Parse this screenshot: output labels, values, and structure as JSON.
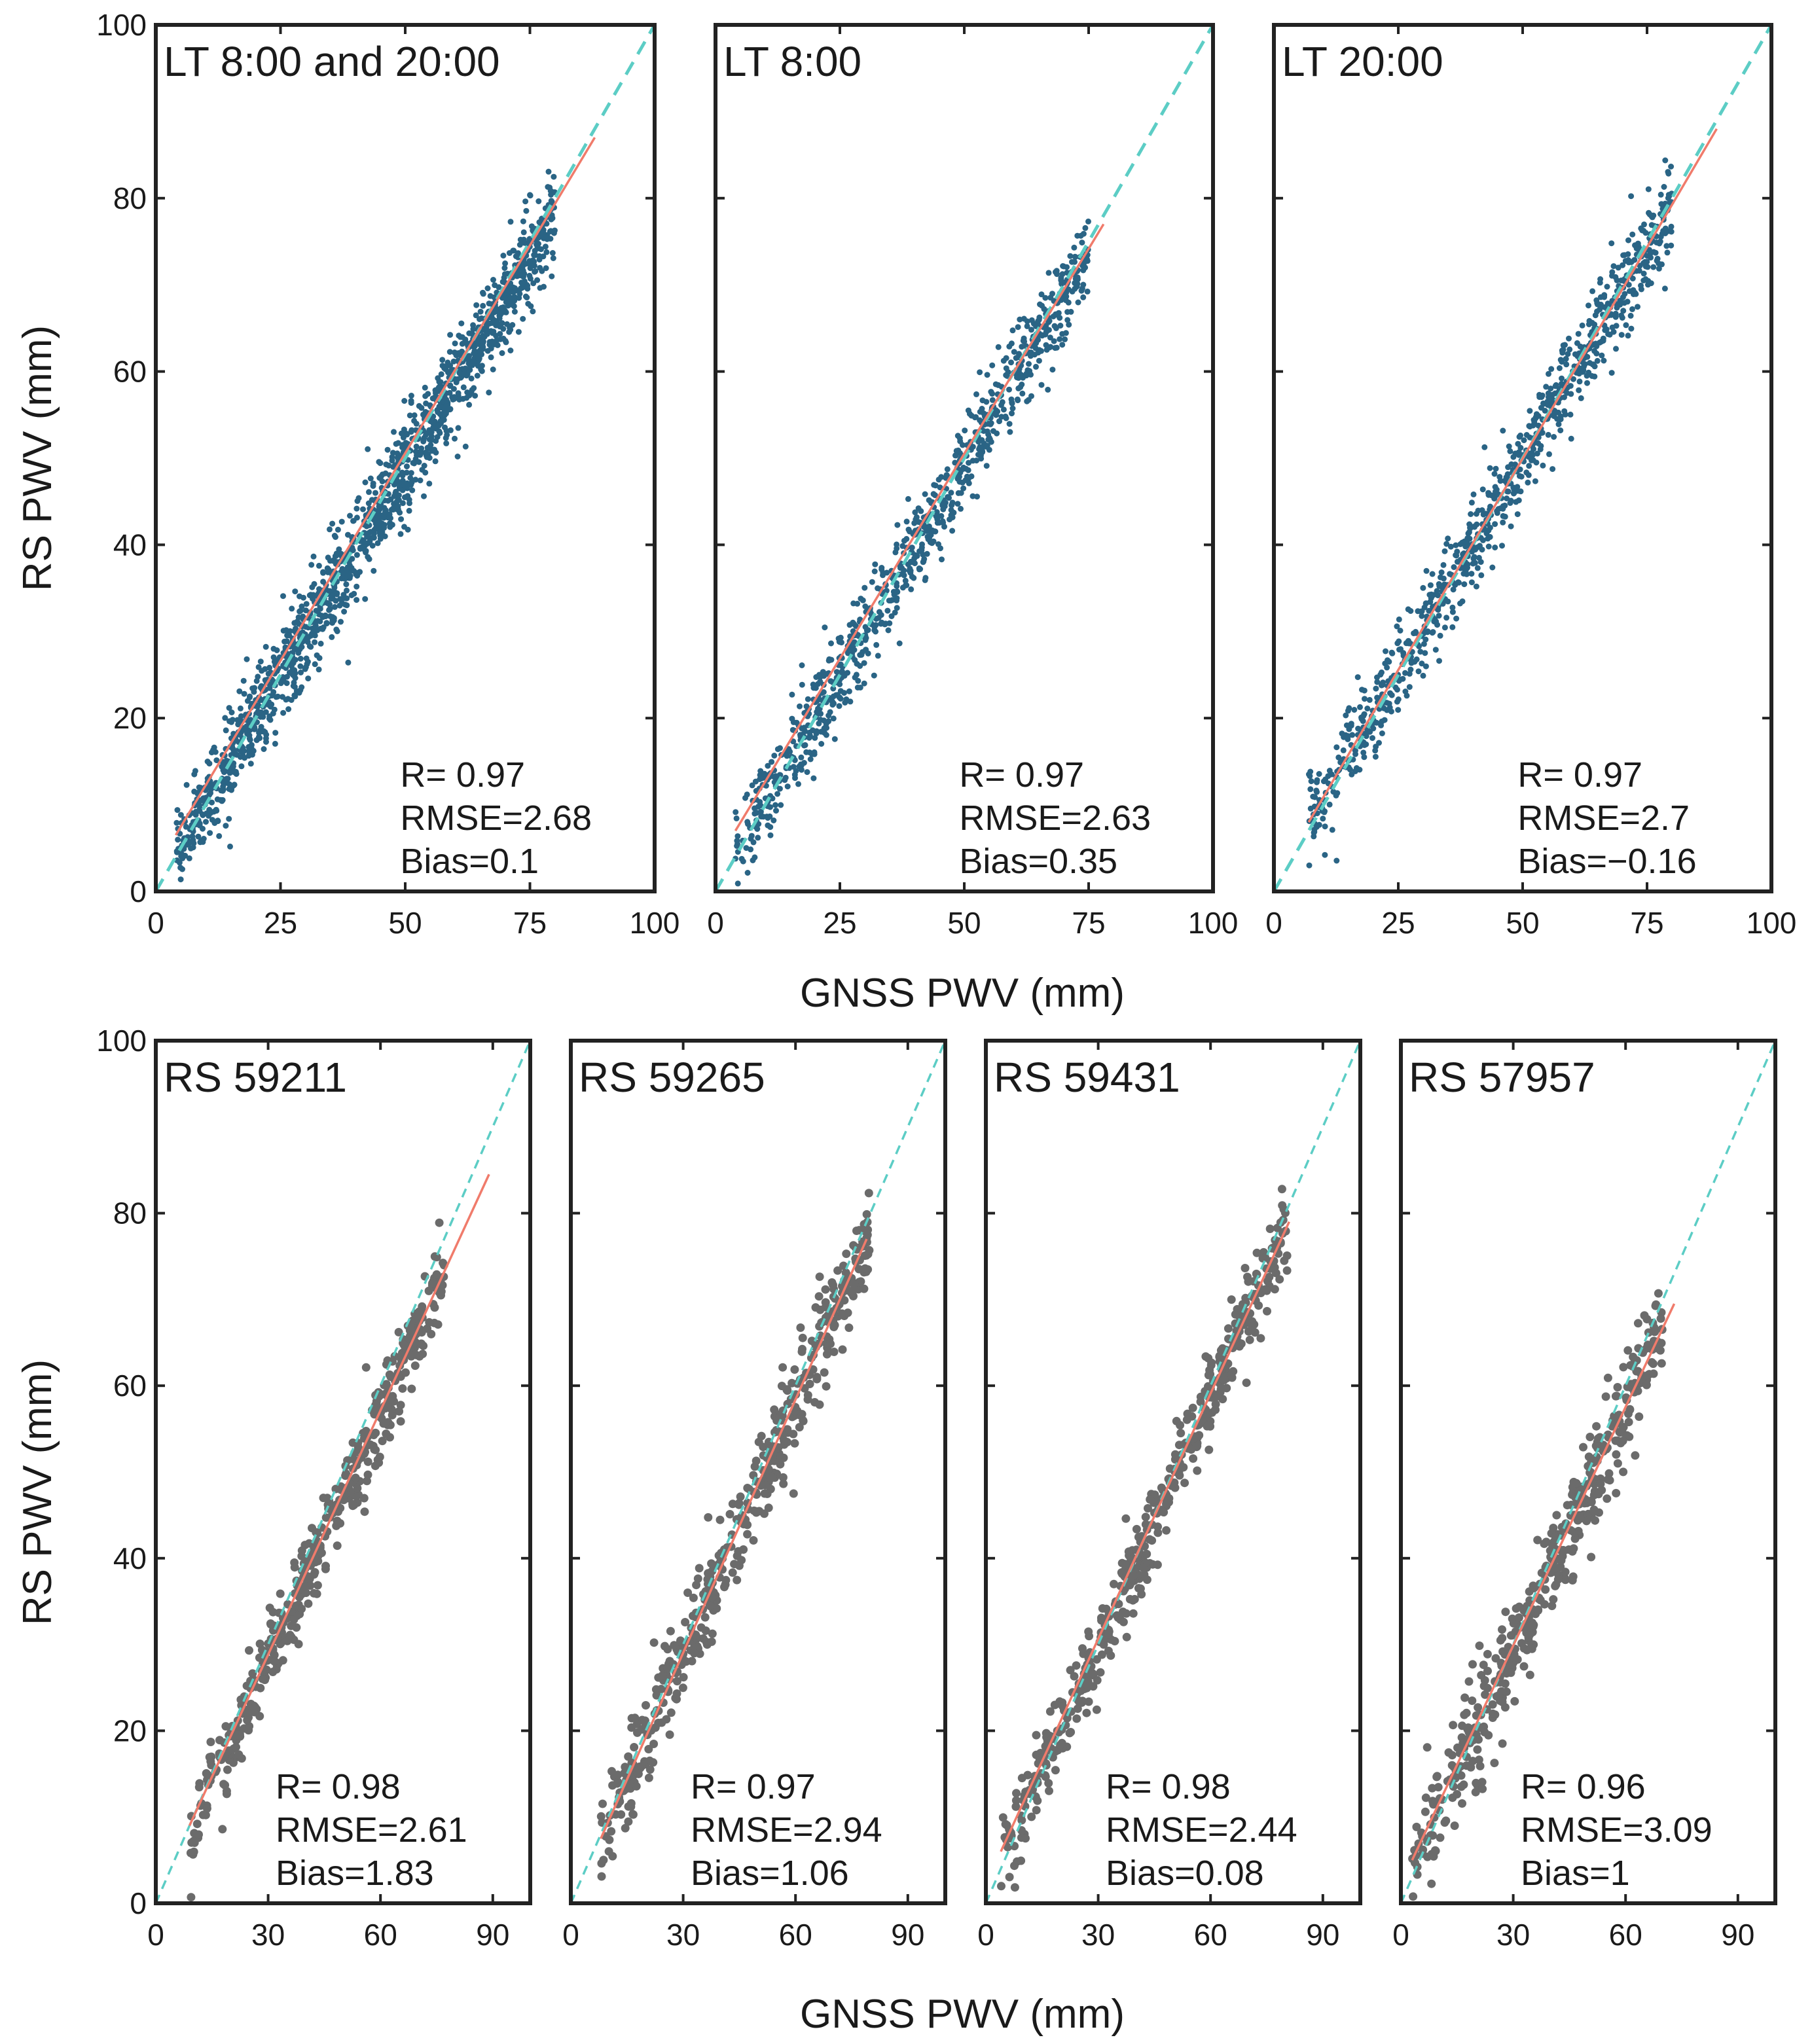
{
  "figure": {
    "x_label": "GNSS PWV (mm)",
    "y_label": "RS PWV (mm)",
    "colors": {
      "top_points": "#2a6485",
      "bottom_points": "#6b6b6b",
      "fit_line": "#f07b6b",
      "identity_line": "#5ccdc5",
      "axes": "#222222"
    }
  },
  "chart_data": [
    {
      "type": "scatter",
      "title": "LT 8:00 and 20:00",
      "xlim": [
        0,
        100
      ],
      "ylim": [
        0,
        100
      ],
      "xticks": [
        0,
        25,
        50,
        75,
        100
      ],
      "yticks": [
        0,
        20,
        40,
        60,
        80,
        100
      ],
      "stats": [
        "R= 0.97",
        "RMSE=2.68",
        "Bias=0.1"
      ],
      "fit_line": [
        [
          4,
          6.5
        ],
        [
          88,
          87
        ]
      ],
      "identity_line": [
        [
          0,
          0
        ],
        [
          100,
          100
        ]
      ],
      "scatter_summary": {
        "x_range": [
          4,
          80
        ],
        "slope": 0.97,
        "intercept": 0.6,
        "spread": 2.7,
        "n_shown": 1500
      }
    },
    {
      "type": "scatter",
      "title": "LT 8:00",
      "xlim": [
        0,
        100
      ],
      "ylim": [
        0,
        100
      ],
      "xticks": [
        0,
        25,
        50,
        75,
        100
      ],
      "yticks": [
        0,
        20,
        40,
        60,
        80,
        100
      ],
      "stats": [
        "R= 0.97",
        "RMSE=2.63",
        "Bias=0.35"
      ],
      "fit_line": [
        [
          4,
          7
        ],
        [
          78,
          77
        ]
      ],
      "identity_line": [
        [
          0,
          0
        ],
        [
          100,
          100
        ]
      ],
      "scatter_summary": {
        "x_range": [
          4,
          75
        ],
        "slope": 0.97,
        "intercept": 0.8,
        "spread": 2.6,
        "n_shown": 900
      }
    },
    {
      "type": "scatter",
      "title": "LT 20:00",
      "xlim": [
        0,
        100
      ],
      "ylim": [
        0,
        100
      ],
      "xticks": [
        0,
        25,
        50,
        75,
        100
      ],
      "yticks": [
        0,
        20,
        40,
        60,
        80,
        100
      ],
      "stats": [
        "R= 0.97",
        "RMSE=2.7",
        "Bias=−0.16"
      ],
      "fit_line": [
        [
          7,
          8
        ],
        [
          89,
          88
        ]
      ],
      "identity_line": [
        [
          0,
          0
        ],
        [
          100,
          100
        ]
      ],
      "scatter_summary": {
        "x_range": [
          7,
          80
        ],
        "slope": 0.98,
        "intercept": 0.9,
        "spread": 2.7,
        "n_shown": 900
      }
    },
    {
      "type": "scatter",
      "title": "RS 59211",
      "xlim": [
        0,
        100
      ],
      "ylim": [
        0,
        100
      ],
      "xticks": [
        0,
        30,
        60,
        90
      ],
      "yticks": [
        0,
        20,
        40,
        60,
        80,
        100
      ],
      "stats": [
        "R= 0.98",
        "RMSE=2.61",
        "Bias=1.83"
      ],
      "fit_line": [
        [
          9,
          9
        ],
        [
          89,
          84.5
        ]
      ],
      "identity_line": [
        [
          0,
          0
        ],
        [
          100,
          100
        ]
      ],
      "scatter_summary": {
        "x_range": [
          9,
          77
        ],
        "slope": 0.95,
        "intercept": -0.5,
        "spread": 2.4,
        "n_shown": 450
      }
    },
    {
      "type": "scatter",
      "title": "RS 59265",
      "xlim": [
        0,
        100
      ],
      "ylim": [
        0,
        100
      ],
      "xticks": [
        0,
        30,
        60,
        90
      ],
      "yticks": [
        0,
        20,
        40,
        60,
        80,
        100
      ],
      "stats": [
        "R= 0.97",
        "RMSE=2.94",
        "Bias=1.06"
      ],
      "fit_line": [
        [
          8,
          7.5
        ],
        [
          79,
          77
        ]
      ],
      "identity_line": [
        [
          0,
          0
        ],
        [
          100,
          100
        ]
      ],
      "scatter_summary": {
        "x_range": [
          8,
          80
        ],
        "slope": 0.98,
        "intercept": -0.5,
        "spread": 2.8,
        "n_shown": 450
      }
    },
    {
      "type": "scatter",
      "title": "RS 59431",
      "xlim": [
        0,
        100
      ],
      "ylim": [
        0,
        100
      ],
      "xticks": [
        0,
        30,
        60,
        90
      ],
      "yticks": [
        0,
        20,
        40,
        60,
        80,
        100
      ],
      "stats": [
        "R= 0.98",
        "RMSE=2.44",
        "Bias=0.08"
      ],
      "fit_line": [
        [
          4,
          6
        ],
        [
          81,
          79
        ]
      ],
      "identity_line": [
        [
          0,
          0
        ],
        [
          100,
          100
        ]
      ],
      "scatter_summary": {
        "x_range": [
          4,
          81
        ],
        "slope": 0.97,
        "intercept": 0.5,
        "spread": 2.4,
        "n_shown": 500
      }
    },
    {
      "type": "scatter",
      "title": "RS 57957",
      "xlim": [
        0,
        100
      ],
      "ylim": [
        0,
        100
      ],
      "xticks": [
        0,
        30,
        60,
        90
      ],
      "yticks": [
        0,
        20,
        40,
        60,
        80,
        100
      ],
      "stats": [
        "R= 0.96",
        "RMSE=3.09",
        "Bias=1"
      ],
      "fit_line": [
        [
          3,
          5
        ],
        [
          73,
          69.5
        ]
      ],
      "identity_line": [
        [
          0,
          0
        ],
        [
          100,
          100
        ]
      ],
      "scatter_summary": {
        "x_range": [
          3,
          70
        ],
        "slope": 0.93,
        "intercept": 1.5,
        "spread": 3.0,
        "n_shown": 450
      }
    }
  ]
}
